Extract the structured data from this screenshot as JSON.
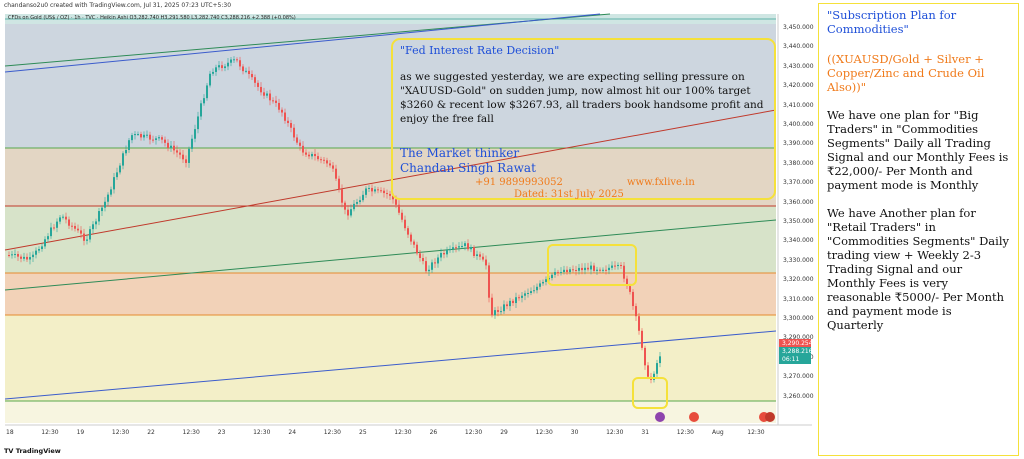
{
  "header": {
    "created_by": "chandanso2u0 created with TradingView.com, Jul 31, 2025 07:23 UTC+5:30",
    "symbol_line": "CFDs on Gold (US$ / OZ) · 1h · TVC · Heikin Ashi  O3,282.740  H3,291.580  L3,282.740  C3,288.216  +2.388 (+0.08%)"
  },
  "price_axis": {
    "labels": [
      "3,450.000",
      "3,440.000",
      "3,430.000",
      "3,420.000",
      "3,410.000",
      "3,400.000",
      "3,390.000",
      "3,380.000",
      "3,370.000",
      "3,360.000",
      "3,350.000",
      "3,340.000",
      "3,330.000",
      "3,320.000",
      "3,310.000",
      "3,300.000",
      "3,290.000",
      "3,280.000",
      "3,270.000",
      "3,260.000"
    ],
    "tag_high": "3,290.254",
    "tag_price": "3,288.216",
    "tag_time": "06:11"
  },
  "time_axis": {
    "labels": [
      "18",
      "12:30",
      "19",
      "12:30",
      "22",
      "12:30",
      "23",
      "12:30",
      "24",
      "12:30",
      "25",
      "12:30",
      "26",
      "12:30",
      "29",
      "12:30",
      "30",
      "12:30",
      "31",
      "12:30",
      "Aug",
      "12:30"
    ]
  },
  "annotation": {
    "title": "\"Fed Interest Rate Decision\"",
    "body": "as we suggested yesterday, we are expecting selling pressure on \"XAUUSD-Gold\" on sudden jump, now almost hit our 100% target $3260 & recent low $3267.93, all traders book handsome profit and enjoy the free fall",
    "author_line1": "The Market thinker",
    "author_line2": "Chandan Singh Rawat",
    "phone": "+91 9899993052",
    "website": "www.fxlive.in",
    "date": "Dated: 31st July 2025"
  },
  "sidebar": {
    "title": "\"Subscription Plan for Commodities\"",
    "subtitle": "((XUAUSD/Gold + Silver + Copper/Zinc and Crude Oil Also))\"",
    "para1": "We have one plan for \"Big Traders\" in \"Commodities Segments\" Daily all Trading Signal and our Monthly Fees is ₹22,000/- Per Month and payment mode is Monthly",
    "para2": "We have Another plan for \"Retail Traders\" in \"Commodities Segments\" Daily trading view + Weekly 2-3 Trading Signal and our Monthly Fees is very reasonable ₹5000/- Per Month and payment mode is Quarterly"
  },
  "footer": {
    "brand": "TradingView"
  },
  "colors": {
    "up": "#26a69a",
    "down": "#ef5350",
    "annotation_border": "#f5e13a",
    "blue_text": "#1e4fd8",
    "orange_text": "#f07a1a"
  }
}
